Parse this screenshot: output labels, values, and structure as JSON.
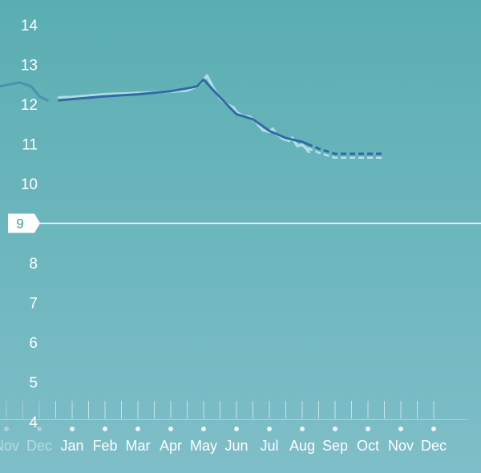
{
  "colors": {
    "bg_top": "#5aaeb2",
    "bg_bottom": "#7fbec8",
    "line": "#2f6aa6",
    "raw_line": "#b8e3e6",
    "goal_line": "#ffffff",
    "goal_tag_bg": "#ffffff",
    "goal_tag_text": "#3e9aa3"
  },
  "chart_data": {
    "type": "line",
    "ylim": [
      4,
      14.8
    ],
    "y_ticks": [
      "14",
      "13",
      "12",
      "11",
      "10",
      "9",
      "8",
      "7",
      "6",
      "5",
      "4"
    ],
    "goal_value": 9,
    "goal_label": "9",
    "months": [
      "Nov",
      "Dec",
      "Jan",
      "Feb",
      "Mar",
      "Apr",
      "May",
      "Jun",
      "Jul",
      "Aug",
      "Sep",
      "Oct",
      "Nov",
      "Dec"
    ],
    "month_index_origin": -2,
    "previous_year_series": {
      "x": [
        -2.2,
        -1.6,
        -1.25,
        -1.0,
        -0.75
      ],
      "y": [
        12.45,
        12.55,
        12.45,
        12.2,
        12.1
      ]
    },
    "trend_series": {
      "x": [
        -0.4,
        0,
        1,
        2,
        3,
        3.5,
        3.8,
        4.0,
        4.3,
        4.7,
        5.0,
        5.5,
        6.0,
        6.5,
        7.0,
        7.5,
        8.0,
        8.5,
        9.0,
        9.5
      ],
      "y": [
        12.1,
        12.13,
        12.2,
        12.25,
        12.33,
        12.4,
        12.45,
        12.62,
        12.35,
        12.0,
        11.75,
        11.62,
        11.33,
        11.15,
        11.05,
        10.88,
        10.75,
        10.75,
        10.75,
        10.75
      ]
    },
    "solid_until_x": 7.15,
    "raw_series": {
      "x": [
        -0.4,
        0,
        1,
        2,
        3,
        3.5,
        3.8,
        4.0,
        4.1,
        4.3,
        4.5,
        4.7,
        4.9,
        5.0,
        5.2,
        5.4,
        5.6,
        5.8,
        6.0,
        6.1,
        6.2,
        6.3,
        6.45,
        6.6,
        6.7,
        6.85,
        7.0,
        7.1,
        7.2
      ],
      "y": [
        12.17,
        12.18,
        12.25,
        12.28,
        12.32,
        12.35,
        12.45,
        12.6,
        12.72,
        12.4,
        12.15,
        12.0,
        11.92,
        11.8,
        11.7,
        11.68,
        11.55,
        11.35,
        11.3,
        11.38,
        11.25,
        11.2,
        11.12,
        11.08,
        11.15,
        10.95,
        10.98,
        10.9,
        10.8
      ]
    }
  }
}
